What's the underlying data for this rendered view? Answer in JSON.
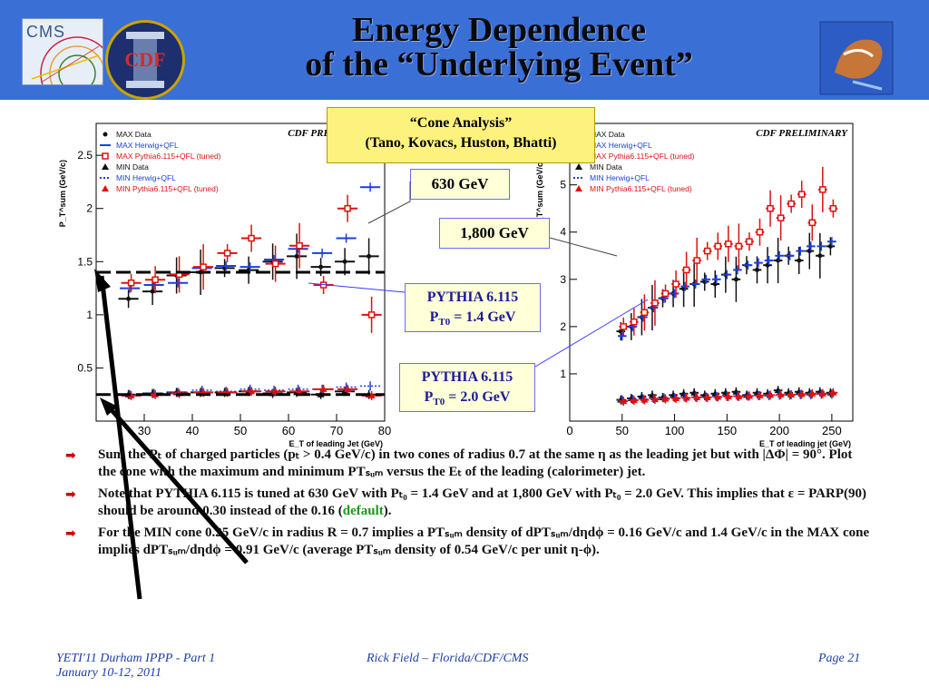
{
  "slide": {
    "title_line1": "Energy Dependence",
    "title_line2": "of the “Underlying Event”",
    "logos": {
      "cms": "CMS",
      "cdf": "CDF"
    }
  },
  "scroll_note": {
    "line1": "“Cone Analysis”",
    "line2": "(Tano, Kovacs, Huston, Bhatti)"
  },
  "callouts": {
    "gev630": "630 GeV",
    "gev1800": "1,800 GeV",
    "pythia14_line1": "PYTHIA 6.115",
    "pythia14_line2_prefix": "P",
    "pythia14_line2_sub": "T0",
    "pythia14_line2_suffix": " = 1.4 GeV",
    "pythia20_line1": "PYTHIA 6.115",
    "pythia20_line2_prefix": "P",
    "pythia20_line2_sub": "T0",
    "pythia20_line2_suffix": " = 2.0 GeV"
  },
  "chart_data": [
    {
      "type": "scatter",
      "title": "CDF PRELIMINARY",
      "xlabel": "E_T of leading Jet (GeV)",
      "ylabel": "P_T^sum (GeV/c)",
      "xlim": [
        20,
        80
      ],
      "ylim": [
        0,
        2.8
      ],
      "xticks": [
        "30",
        "40",
        "50",
        "60",
        "70",
        "80"
      ],
      "yticks": [
        "0.5",
        "1",
        "1.5",
        "2",
        "2.5"
      ],
      "legend_placement": "top-left",
      "legend": [
        "MAX Data",
        "MAX Herwig+QFL",
        "MAX Pythia6.115+QFL (tuned)",
        "MIN Data",
        "MIN Herwig+QFL",
        "MIN Pythia6.115+QFL (tuned)"
      ],
      "series": [
        {
          "name": "MAX Data",
          "x": [
            27,
            32,
            37,
            42,
            47,
            52,
            57,
            62,
            67,
            72,
            77
          ],
          "y": [
            1.15,
            1.22,
            1.37,
            1.4,
            1.44,
            1.42,
            1.5,
            1.55,
            1.45,
            1.5,
            1.55
          ]
        },
        {
          "name": "MAX Herwig+QFL",
          "x": [
            27,
            32,
            37,
            42,
            47,
            52,
            57,
            62,
            67,
            72,
            77
          ],
          "y": [
            1.25,
            1.28,
            1.3,
            1.44,
            1.46,
            1.45,
            1.52,
            1.62,
            1.58,
            1.72,
            2.2
          ]
        },
        {
          "name": "MAX Pythia6.115+QFL (tuned)",
          "x": [
            27,
            32,
            37,
            42,
            47,
            52,
            57,
            62,
            67,
            72,
            77
          ],
          "y": [
            1.3,
            1.33,
            1.38,
            1.45,
            1.58,
            1.72,
            1.48,
            1.65,
            1.28,
            2.0,
            1.0
          ]
        },
        {
          "name": "MIN Data",
          "x": [
            27,
            32,
            37,
            42,
            47,
            52,
            57,
            62,
            67,
            72,
            77
          ],
          "y": [
            0.25,
            0.26,
            0.27,
            0.27,
            0.27,
            0.28,
            0.26,
            0.27,
            0.25,
            0.28,
            0.25
          ]
        },
        {
          "name": "MIN Herwig+QFL",
          "x": [
            27,
            32,
            37,
            42,
            47,
            52,
            57,
            62,
            67,
            72,
            77
          ],
          "y": [
            0.25,
            0.26,
            0.27,
            0.29,
            0.28,
            0.3,
            0.29,
            0.3,
            0.3,
            0.32,
            0.33
          ]
        },
        {
          "name": "MIN Pythia6.115+QFL (tuned)",
          "x": [
            27,
            32,
            37,
            42,
            47,
            52,
            57,
            62,
            67,
            72,
            77
          ],
          "y": [
            0.24,
            0.25,
            0.26,
            0.27,
            0.27,
            0.28,
            0.28,
            0.28,
            0.3,
            0.3,
            0.24
          ]
        }
      ]
    },
    {
      "type": "scatter",
      "title": "CDF PRELIMINARY",
      "xlabel": "E_T of leading jet (GeV)",
      "ylabel": "P_T^sum (GeV/c)",
      "xlim": [
        0,
        270
      ],
      "ylim": [
        0,
        6.3
      ],
      "xticks": [
        "0",
        "50",
        "100",
        "150",
        "200",
        "250"
      ],
      "yticks": [
        "1",
        "2",
        "3",
        "4",
        "5",
        "6"
      ],
      "legend_placement": "top-left",
      "legend": [
        "MAX Data",
        "MAX Herwig+QFL",
        "MAX Pythia6.115+QFL (tuned)",
        "MIN Data",
        "MIN Herwig+QFL",
        "MIN Pythia6.115+QFL (tuned)"
      ],
      "series": [
        {
          "name": "MAX Data",
          "x": [
            50,
            60,
            70,
            80,
            90,
            100,
            110,
            120,
            130,
            140,
            150,
            160,
            170,
            180,
            190,
            200,
            210,
            220,
            230,
            240,
            250
          ],
          "y": [
            1.9,
            2.0,
            2.2,
            2.4,
            2.6,
            2.7,
            2.8,
            2.9,
            2.95,
            2.9,
            3.1,
            3.0,
            3.3,
            3.2,
            3.3,
            3.4,
            3.5,
            3.4,
            3.6,
            3.5,
            3.7
          ]
        },
        {
          "name": "MAX Herwig+QFL",
          "x": [
            50,
            60,
            70,
            80,
            90,
            100,
            110,
            120,
            130,
            140,
            150,
            160,
            170,
            180,
            190,
            200,
            210,
            220,
            230,
            240,
            250
          ],
          "y": [
            1.8,
            2.0,
            2.2,
            2.4,
            2.6,
            2.7,
            2.85,
            2.9,
            3.0,
            3.0,
            3.1,
            3.2,
            3.3,
            3.35,
            3.4,
            3.5,
            3.5,
            3.6,
            3.7,
            3.7,
            3.8
          ]
        },
        {
          "name": "MAX Pythia6.115+QFL (tuned)",
          "x": [
            50,
            60,
            70,
            80,
            90,
            100,
            110,
            120,
            130,
            140,
            150,
            160,
            170,
            180,
            190,
            200,
            210,
            220,
            230,
            240,
            250
          ],
          "y": [
            2.0,
            2.1,
            2.3,
            2.5,
            2.7,
            2.9,
            3.2,
            3.4,
            3.6,
            3.7,
            3.75,
            3.7,
            3.8,
            4.0,
            4.5,
            4.3,
            4.6,
            4.8,
            4.2,
            4.9,
            4.5
          ]
        },
        {
          "name": "MIN Data",
          "x": [
            50,
            60,
            70,
            80,
            90,
            100,
            110,
            120,
            130,
            140,
            150,
            160,
            170,
            180,
            190,
            200,
            210,
            220,
            230,
            240,
            250
          ],
          "y": [
            0.45,
            0.48,
            0.52,
            0.55,
            0.5,
            0.55,
            0.58,
            0.6,
            0.55,
            0.58,
            0.6,
            0.62,
            0.55,
            0.6,
            0.58,
            0.65,
            0.6,
            0.62,
            0.6,
            0.62,
            0.6
          ]
        },
        {
          "name": "MIN Herwig+QFL",
          "x": [
            50,
            60,
            70,
            80,
            90,
            100,
            110,
            120,
            130,
            140,
            150,
            160,
            170,
            180,
            190,
            200,
            210,
            220,
            230,
            240,
            250
          ],
          "y": [
            0.45,
            0.46,
            0.47,
            0.48,
            0.49,
            0.5,
            0.5,
            0.51,
            0.51,
            0.52,
            0.52,
            0.53,
            0.53,
            0.54,
            0.54,
            0.55,
            0.55,
            0.56,
            0.56,
            0.57,
            0.57
          ]
        },
        {
          "name": "MIN Pythia6.115+QFL (tuned)",
          "x": [
            50,
            60,
            70,
            80,
            90,
            100,
            110,
            120,
            130,
            140,
            150,
            160,
            170,
            180,
            190,
            200,
            210,
            220,
            230,
            240,
            250
          ],
          "y": [
            0.42,
            0.44,
            0.45,
            0.46,
            0.47,
            0.48,
            0.49,
            0.5,
            0.5,
            0.51,
            0.52,
            0.52,
            0.53,
            0.54,
            0.55,
            0.56,
            0.56,
            0.57,
            0.58,
            0.58,
            0.6
          ]
        }
      ]
    }
  ],
  "bullets": [
    {
      "text": "Sum the Pₜ of charged particles (pₜ > 0.4 GeV/c) in two cones of radius 0.7 at the same η as the leading jet but with |ΔΦ| = 90°.  Plot the cone with the maximum and minimum PTₛᵤₘ versus the Eₜ of the leading (calorimeter) jet."
    },
    {
      "text_before": "Note that PYTHIA 6.115 is tuned at 630 GeV with Pₜ₀ = 1.4 GeV and at 1,800 GeV with Pₜ₀ = 2.0 GeV.  This implies that ε = PARP(90) should be around 0.30 instead of the 0.16 (",
      "highlight": "default",
      "text_after": ")."
    },
    {
      "text": "For the MIN cone 0.25 GeV/c in radius R = 0.7 implies a PTₛᵤₘ density of dPTₛᵤₘ/dηdϕ = 0.16 GeV/c and 1.4 GeV/c in the MAX cone implies dPTₛᵤₘ/dηdϕ = 0.91 GeV/c (average PTₛᵤₘ density of 0.54 GeV/c per unit η-ϕ)."
    }
  ],
  "footer": {
    "left_line1": "YETI'11 Durham IPPP - Part 1",
    "left_line2": "January 10-12, 2011",
    "center": "Rick Field – Florida/CDF/CMS",
    "right": "Page 21"
  },
  "colors": {
    "header": "#3a6fd6",
    "max_pythia": "#e01010",
    "herwig": "#1a3fe0",
    "data": "#111111",
    "bullet_arrow": "#cc0000",
    "default_highlight": "#1a9a1a"
  }
}
